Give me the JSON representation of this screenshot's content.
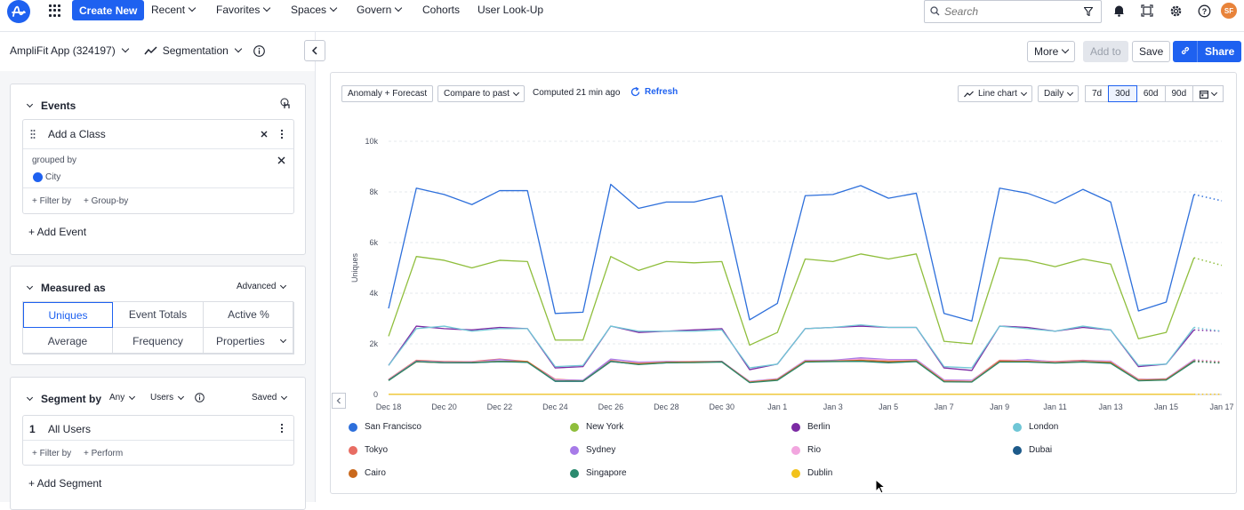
{
  "nav": {
    "create_new": "Create New",
    "items": [
      "Recent",
      "Favorites",
      "Spaces",
      "Govern",
      "Cohorts",
      "User Look-Up"
    ],
    "search_placeholder": "Search",
    "avatar_initials": "SF"
  },
  "header": {
    "project": "AmpliFit App (324197)",
    "chart_type": "Segmentation",
    "more": "More",
    "add_to": "Add to",
    "save": "Save",
    "share": "Share"
  },
  "events": {
    "title": "Events",
    "event_name": "Add a Class",
    "grouped_by_label": "grouped by",
    "group_property": "City",
    "filter_by": "+ Filter by",
    "group_by": "+ Group-by",
    "add_event": "+ Add Event"
  },
  "measured": {
    "title": "Measured as",
    "advanced": "Advanced",
    "options": [
      "Uniques",
      "Event Totals",
      "Active %",
      "Average",
      "Frequency",
      "Properties"
    ],
    "selected": "Uniques"
  },
  "segment": {
    "title": "Segment by",
    "any": "Any",
    "users": "Users",
    "saved": "Saved",
    "index": "1",
    "segment_name": "All Users",
    "filter_by": "+ Filter by",
    "perform": "+ Perform",
    "add_segment": "+ Add Segment"
  },
  "chart_controls": {
    "anomaly": "Anomaly + Forecast",
    "compare": "Compare to past",
    "computed": "Computed 21 min ago",
    "refresh": "Refresh",
    "line_chart": "Line chart",
    "interval": "Daily",
    "ranges": [
      "7d",
      "30d",
      "60d",
      "90d"
    ],
    "selected_range": "30d"
  },
  "colors": {
    "accent": "#1e61f0"
  },
  "chart_data": {
    "type": "line",
    "ylabel": "Uniques",
    "xlabel": "",
    "ylim": [
      0,
      10000
    ],
    "yticks": [
      "0",
      "2k",
      "4k",
      "6k",
      "8k",
      "10k"
    ],
    "x_tick_labels": [
      "Dec 18",
      "Dec 20",
      "Dec 22",
      "Dec 24",
      "Dec 26",
      "Dec 28",
      "Dec 30",
      "Jan 1",
      "Jan 3",
      "Jan 5",
      "Jan 7",
      "Jan 9",
      "Jan 11",
      "Jan 13",
      "Jan 15",
      "Jan 17"
    ],
    "x": [
      "Dec 18",
      "Dec 19",
      "Dec 20",
      "Dec 21",
      "Dec 22",
      "Dec 23",
      "Dec 24",
      "Dec 25",
      "Dec 26",
      "Dec 27",
      "Dec 28",
      "Dec 29",
      "Dec 30",
      "Dec 31",
      "Jan 1",
      "Jan 2",
      "Jan 3",
      "Jan 4",
      "Jan 5",
      "Jan 6",
      "Jan 7",
      "Jan 8",
      "Jan 9",
      "Jan 10",
      "Jan 11",
      "Jan 12",
      "Jan 13",
      "Jan 14",
      "Jan 15",
      "Jan 16",
      "Jan 17"
    ],
    "forecast_start_index": 29,
    "grid": true,
    "legend_position": "bottom",
    "series": [
      {
        "name": "San Francisco",
        "color": "#2d6fdb",
        "values": [
          3400,
          8150,
          7900,
          7500,
          8050,
          8050,
          3200,
          3250,
          8300,
          7350,
          7600,
          7600,
          7850,
          2950,
          3600,
          7850,
          7900,
          8250,
          7750,
          7950,
          3200,
          2900,
          8150,
          7950,
          7550,
          8100,
          7600,
          3300,
          3650,
          7900,
          7650
        ]
      },
      {
        "name": "New York",
        "color": "#8fbe3c",
        "values": [
          2300,
          5450,
          5300,
          5000,
          5300,
          5250,
          2150,
          2150,
          5450,
          4900,
          5250,
          5200,
          5250,
          1950,
          2450,
          5350,
          5250,
          5550,
          5350,
          5550,
          2100,
          2000,
          5400,
          5300,
          5050,
          5350,
          5150,
          2200,
          2450,
          5400,
          5100
        ]
      },
      {
        "name": "Berlin",
        "color": "#7b2aa3",
        "values": [
          1150,
          2700,
          2600,
          2550,
          2650,
          2600,
          1050,
          1100,
          2700,
          2450,
          2500,
          2550,
          2600,
          980,
          1200,
          2600,
          2650,
          2700,
          2650,
          2650,
          1050,
          950,
          2700,
          2650,
          2500,
          2650,
          2550,
          1100,
          1200,
          2550,
          2500
        ]
      },
      {
        "name": "London",
        "color": "#6fc6d6",
        "values": [
          1150,
          2600,
          2700,
          2500,
          2600,
          2600,
          1100,
          1150,
          2700,
          2500,
          2500,
          2500,
          2550,
          1050,
          1200,
          2600,
          2650,
          2750,
          2650,
          2650,
          1100,
          1050,
          2700,
          2600,
          2500,
          2700,
          2550,
          1150,
          1200,
          2650,
          2500
        ]
      },
      {
        "name": "Tokyo",
        "color": "#e86d63",
        "values": [
          600,
          1350,
          1300,
          1300,
          1400,
          1300,
          600,
          550,
          1350,
          1200,
          1300,
          1300,
          1300,
          500,
          600,
          1300,
          1350,
          1400,
          1350,
          1350,
          550,
          550,
          1350,
          1350,
          1300,
          1350,
          1300,
          600,
          600,
          1350,
          1300
        ]
      },
      {
        "name": "Sydney",
        "color": "#a77be8",
        "values": [
          580,
          1320,
          1280,
          1280,
          1380,
          1280,
          580,
          560,
          1400,
          1280,
          1300,
          1280,
          1300,
          520,
          620,
          1350,
          1350,
          1450,
          1380,
          1380,
          580,
          560,
          1300,
          1380,
          1280,
          1330,
          1320,
          580,
          620,
          1380,
          1280
        ]
      },
      {
        "name": "Rio",
        "color": "#f2a6df",
        "values": [
          590,
          1310,
          1270,
          1300,
          1320,
          1290,
          560,
          540,
          1320,
          1250,
          1280,
          1290,
          1310,
          510,
          610,
          1330,
          1330,
          1400,
          1360,
          1350,
          560,
          540,
          1320,
          1340,
          1280,
          1310,
          1300,
          570,
          610,
          1370,
          1270
        ]
      },
      {
        "name": "Dubai",
        "color": "#1d5a8a",
        "values": [
          570,
          1300,
          1250,
          1250,
          1300,
          1280,
          520,
          520,
          1300,
          1200,
          1250,
          1280,
          1300,
          480,
          580,
          1300,
          1320,
          1330,
          1280,
          1320,
          520,
          500,
          1300,
          1300,
          1250,
          1300,
          1250,
          550,
          580,
          1330,
          1250
        ]
      },
      {
        "name": "Cairo",
        "color": "#c9681c",
        "values": [
          560,
          1290,
          1260,
          1270,
          1310,
          1300,
          540,
          530,
          1310,
          1220,
          1270,
          1280,
          1290,
          490,
          590,
          1310,
          1320,
          1350,
          1300,
          1330,
          530,
          510,
          1310,
          1310,
          1260,
          1300,
          1270,
          560,
          600,
          1320,
          1260
        ]
      },
      {
        "name": "Singapore",
        "color": "#2a8a6e",
        "values": [
          550,
          1300,
          1260,
          1260,
          1300,
          1270,
          530,
          530,
          1310,
          1180,
          1250,
          1260,
          1280,
          470,
          560,
          1280,
          1300,
          1310,
          1250,
          1300,
          500,
          490,
          1280,
          1280,
          1240,
          1280,
          1230,
          540,
          570,
          1300,
          1240
        ]
      },
      {
        "name": "Dublin",
        "color": "#f2c21b",
        "values": [
          10,
          10,
          10,
          10,
          10,
          10,
          10,
          10,
          10,
          10,
          10,
          10,
          10,
          10,
          10,
          10,
          10,
          10,
          10,
          10,
          10,
          10,
          10,
          10,
          10,
          10,
          10,
          10,
          10,
          10,
          10
        ]
      }
    ]
  }
}
